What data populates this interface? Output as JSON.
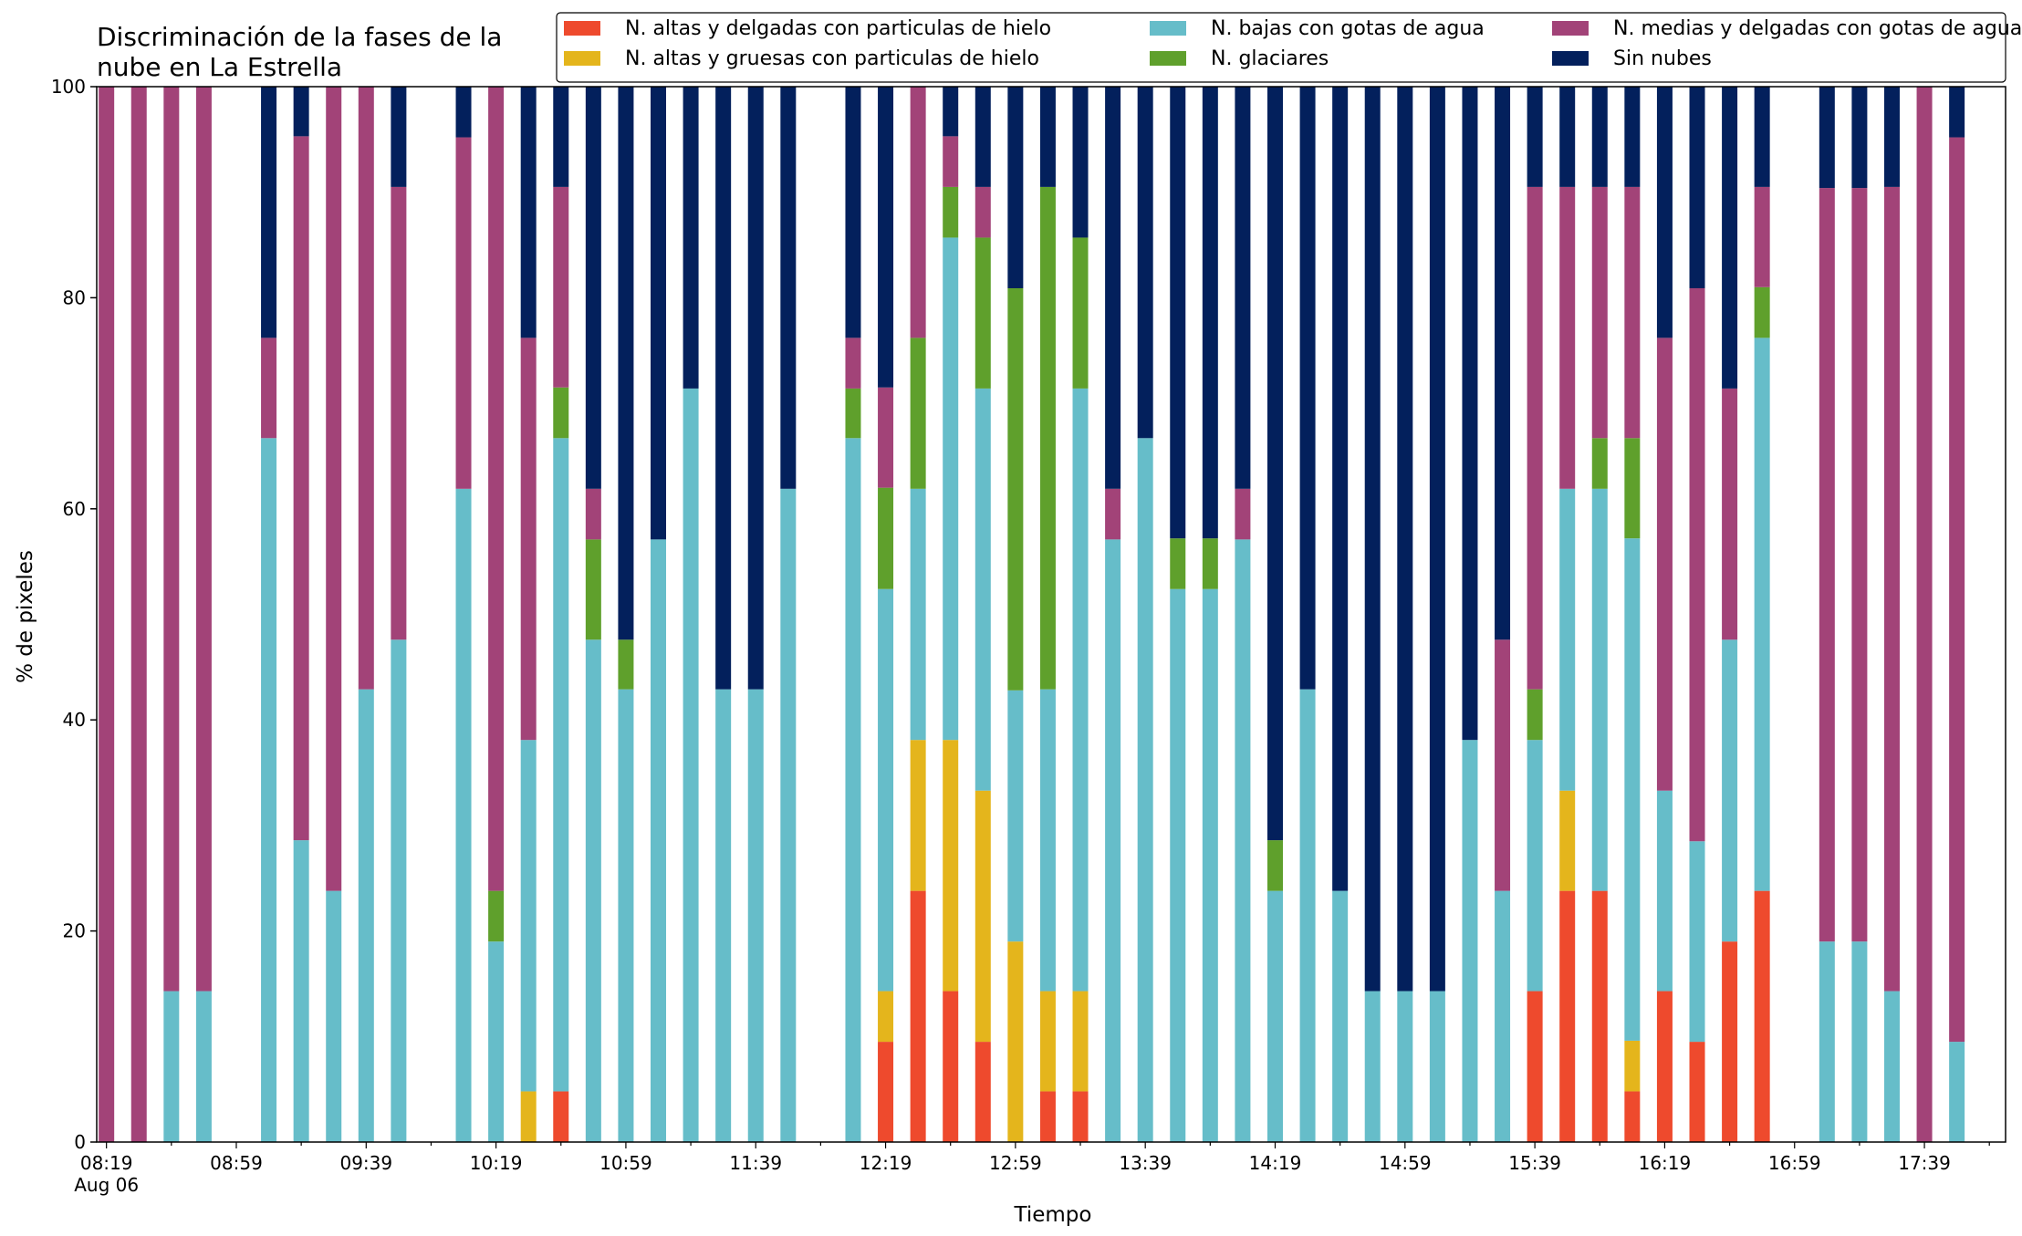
{
  "chart_data": {
    "type": "bar",
    "stacked": true,
    "title": [
      "Discriminación de la fases de la",
      "nube en La Estrella"
    ],
    "xlabel": "Tiempo",
    "ylabel": "% de pixeles",
    "ylim": [
      0,
      100
    ],
    "yticks": [
      "0",
      "20",
      "40",
      "60",
      "80",
      "100"
    ],
    "xticks": [
      {
        "label": "08:19",
        "sub": "Aug 06",
        "minute": 0
      },
      {
        "label": "08:59",
        "minute": 40
      },
      {
        "label": "09:39",
        "minute": 80
      },
      {
        "label": "10:19",
        "minute": 120
      },
      {
        "label": "10:59",
        "minute": 160
      },
      {
        "label": "11:39",
        "minute": 200
      },
      {
        "label": "12:19",
        "minute": 240
      },
      {
        "label": "12:59",
        "minute": 280
      },
      {
        "label": "13:39",
        "minute": 320
      },
      {
        "label": "14:19",
        "minute": 360
      },
      {
        "label": "14:59",
        "minute": 400
      },
      {
        "label": "15:39",
        "minute": 440
      },
      {
        "label": "16:19",
        "minute": 480
      },
      {
        "label": "16:59",
        "minute": 520
      },
      {
        "label": "17:39",
        "minute": 560
      }
    ],
    "xlim_minutes": [
      -3,
      585
    ],
    "legend": {
      "placement": "top-right",
      "columns": 3
    },
    "series": [
      {
        "name": "N. altas y delgadas con particulas de hielo",
        "color": "#ee4a2d"
      },
      {
        "name": "N. altas y gruesas con particulas de hielo",
        "color": "#e4b51c"
      },
      {
        "name": "N. bajas con gotas de agua",
        "color": "#66bdc9"
      },
      {
        "name": "N. glaciares",
        "color": "#5fa02c"
      },
      {
        "name": "N. medias y delgadas con gotas de agua",
        "color": "#a24378"
      },
      {
        "name": "Sin nubes",
        "color": "#03205c"
      }
    ],
    "series_order_note": "each entry: [minute after 08:19, altas_delgadas, altas_gruesas, bajas, glaciares, medias, sin_nubes]",
    "bars": [
      [
        0,
        0,
        0,
        0,
        0,
        100,
        0
      ],
      [
        10,
        0,
        0,
        0,
        0,
        100,
        0
      ],
      [
        20,
        0,
        0,
        14.3,
        0,
        85.7,
        0
      ],
      [
        30,
        0,
        0,
        14.3,
        0,
        85.7,
        0
      ],
      [
        50,
        0,
        0,
        66.7,
        0,
        9.5,
        23.8
      ],
      [
        60,
        0,
        0,
        28.6,
        0,
        66.7,
        4.7
      ],
      [
        70,
        0,
        0,
        23.8,
        0,
        76.2,
        0
      ],
      [
        80,
        0,
        0,
        42.9,
        0,
        57.1,
        0
      ],
      [
        90,
        0,
        0,
        47.6,
        0,
        42.9,
        9.5
      ],
      [
        110,
        0,
        0,
        61.9,
        0,
        33.3,
        4.8
      ],
      [
        120,
        0,
        0,
        19.0,
        4.8,
        76.2,
        0
      ],
      [
        130,
        0,
        4.8,
        33.3,
        0,
        38.1,
        23.8
      ],
      [
        140,
        4.8,
        0,
        61.9,
        4.8,
        19.0,
        9.5
      ],
      [
        150,
        0,
        0,
        47.6,
        9.5,
        4.8,
        38.1
      ],
      [
        160,
        0,
        0,
        42.9,
        4.7,
        0,
        52.4
      ],
      [
        170,
        0,
        0,
        57.1,
        0,
        0,
        42.9
      ],
      [
        180,
        0,
        0,
        71.4,
        0,
        0,
        28.6
      ],
      [
        190,
        0,
        0,
        42.9,
        0,
        0,
        57.1
      ],
      [
        200,
        0,
        0,
        42.9,
        0,
        0,
        57.1
      ],
      [
        210,
        0,
        0,
        61.9,
        0,
        0,
        38.1
      ],
      [
        230,
        0,
        0,
        66.7,
        4.7,
        4.8,
        23.8
      ],
      [
        240,
        9.5,
        4.8,
        38.1,
        9.6,
        9.5,
        28.5
      ],
      [
        250,
        23.8,
        14.3,
        23.8,
        14.3,
        23.8,
        0
      ],
      [
        260,
        14.3,
        23.8,
        47.6,
        4.8,
        4.8,
        4.7
      ],
      [
        270,
        9.5,
        23.8,
        38.1,
        14.3,
        4.8,
        9.5
      ],
      [
        280,
        0,
        19.0,
        23.8,
        38.1,
        0,
        19.1
      ],
      [
        290,
        4.8,
        9.5,
        28.6,
        47.6,
        0,
        9.5
      ],
      [
        300,
        4.8,
        9.5,
        57.1,
        14.3,
        0,
        14.3
      ],
      [
        310,
        0,
        0,
        57.1,
        0,
        4.8,
        38.1
      ],
      [
        320,
        0,
        0,
        66.7,
        0,
        0,
        33.3
      ],
      [
        330,
        0,
        0,
        52.4,
        4.8,
        0,
        42.8
      ],
      [
        340,
        0,
        0,
        52.4,
        4.8,
        0,
        42.8
      ],
      [
        350,
        0,
        0,
        57.1,
        0,
        4.8,
        38.1
      ],
      [
        360,
        0,
        0,
        23.8,
        4.8,
        0,
        71.4
      ],
      [
        370,
        0,
        0,
        42.9,
        0,
        0,
        57.1
      ],
      [
        380,
        0,
        0,
        23.8,
        0,
        0,
        76.2
      ],
      [
        390,
        0,
        0,
        14.3,
        0,
        0,
        85.7
      ],
      [
        400,
        0,
        0,
        14.3,
        0,
        0,
        85.7
      ],
      [
        410,
        0,
        0,
        14.3,
        0,
        0,
        85.7
      ],
      [
        420,
        0,
        0,
        38.1,
        0,
        0,
        61.9
      ],
      [
        430,
        0,
        0,
        23.8,
        0,
        23.8,
        52.4
      ],
      [
        440,
        14.3,
        0,
        23.8,
        4.8,
        47.6,
        9.5
      ],
      [
        450,
        23.8,
        9.5,
        28.6,
        0,
        28.6,
        9.5
      ],
      [
        460,
        23.8,
        0,
        38.1,
        4.8,
        23.8,
        9.5
      ],
      [
        470,
        4.8,
        4.8,
        47.6,
        9.5,
        23.8,
        9.5
      ],
      [
        480,
        14.3,
        0,
        19.0,
        0,
        42.9,
        23.8
      ],
      [
        490,
        9.5,
        0,
        19.0,
        0,
        52.4,
        19.1
      ],
      [
        500,
        19.0,
        0,
        28.6,
        0,
        23.8,
        28.6
      ],
      [
        510,
        23.8,
        0,
        52.4,
        4.8,
        9.5,
        9.5
      ],
      [
        530,
        0,
        0,
        19.0,
        0,
        71.4,
        9.6
      ],
      [
        540,
        0,
        0,
        19.0,
        0,
        71.4,
        9.6
      ],
      [
        550,
        0,
        0,
        14.3,
        0,
        76.2,
        9.5
      ],
      [
        560,
        0,
        0,
        0,
        0,
        100,
        0
      ],
      [
        570,
        0,
        0,
        9.5,
        0,
        85.7,
        4.8
      ]
    ]
  }
}
